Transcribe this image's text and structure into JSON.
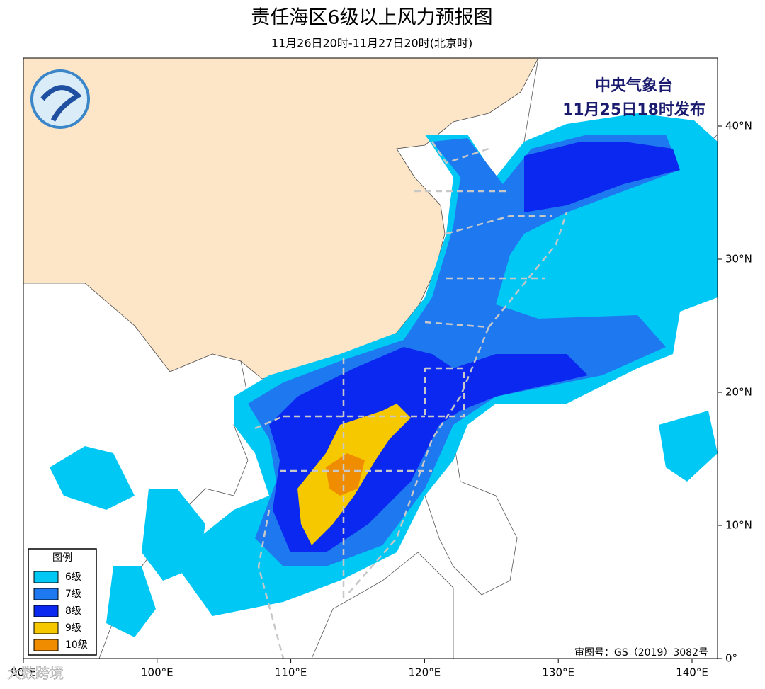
{
  "header": {
    "title": "责任海区6级以上风力预报图",
    "subtitle": "11月26日20时-11月27日20时(北京时)"
  },
  "map": {
    "agency": "中央气象台",
    "issued": "11月25日18时发布",
    "approval": "审图号：GS（2019）3082号",
    "lon_ticks": [
      "90°E",
      "100°E",
      "110°E",
      "120°E",
      "130°E",
      "140°E"
    ],
    "lat_ticks": [
      "0°",
      "10°N",
      "20°N",
      "30°N",
      "40°N"
    ]
  },
  "legend": {
    "title": "图例",
    "items": [
      {
        "label": "6级",
        "color": "#00c8f5"
      },
      {
        "label": "7级",
        "color": "#1e78f0"
      },
      {
        "label": "8级",
        "color": "#0a28f0"
      },
      {
        "label": "9级",
        "color": "#f5c800"
      },
      {
        "label": "10级",
        "color": "#f08c00"
      }
    ]
  },
  "watermark": "大数跨境"
}
